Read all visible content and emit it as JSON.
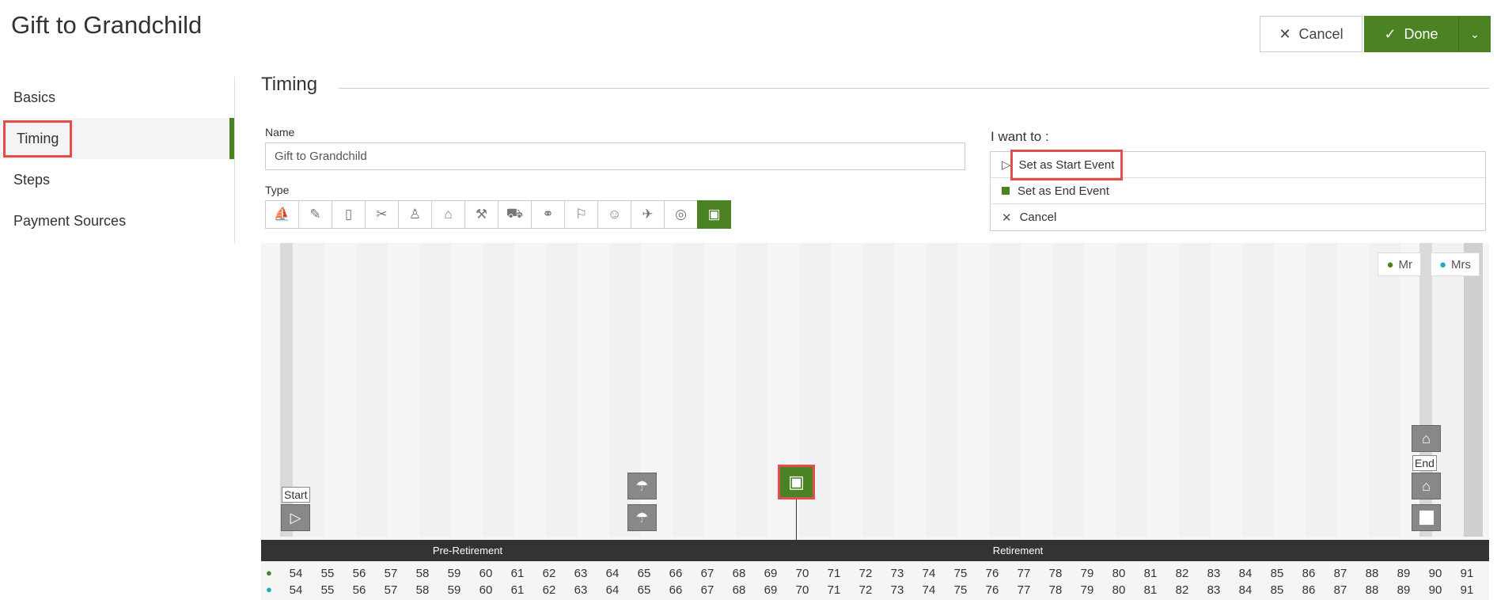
{
  "header": {
    "title": "Gift to Grandchild",
    "cancel_label": "Cancel",
    "done_label": "Done"
  },
  "sidebar": {
    "items": [
      {
        "label": "Basics"
      },
      {
        "label": "Timing"
      },
      {
        "label": "Steps"
      },
      {
        "label": "Payment Sources"
      }
    ],
    "active": "Timing"
  },
  "section": {
    "title": "Timing"
  },
  "form": {
    "name_label": "Name",
    "name_value": "Gift to Grandchild",
    "type_label": "Type",
    "types": [
      "boat-icon",
      "graduation-icon",
      "book-icon",
      "wedding-icon",
      "car-seat-icon",
      "house-icon",
      "home-improvement-icon",
      "car-icon",
      "family-icon",
      "paint-roller-icon",
      "person-icon",
      "plane-icon",
      "rings-icon",
      "calendar-gift-icon"
    ],
    "selected_type": "calendar-gift-icon"
  },
  "actions": {
    "title": "I want to :",
    "items": [
      {
        "label": "Set as Start Event",
        "icon": "play-icon"
      },
      {
        "label": "Set as End Event",
        "icon": "stop-icon"
      },
      {
        "label": "Cancel",
        "icon": "close-icon"
      }
    ]
  },
  "timeline": {
    "people": [
      {
        "label": "Mr",
        "color": "#4b8224"
      },
      {
        "label": "Mrs",
        "color": "#1fa9bf"
      }
    ],
    "start_label": "Start",
    "end_label": "End",
    "phases": [
      {
        "label": "Pre-Retirement",
        "color": "#6b4c91"
      },
      {
        "label": "Retirement",
        "color": "#1fb0c6"
      }
    ],
    "ages_mr": [
      "54",
      "55",
      "56",
      "57",
      "58",
      "59",
      "60",
      "61",
      "62",
      "63",
      "64",
      "65",
      "66",
      "67",
      "68",
      "69",
      "70",
      "71",
      "72",
      "73",
      "74",
      "75",
      "76",
      "77",
      "78",
      "79",
      "80",
      "81",
      "82",
      "83",
      "84",
      "85",
      "86",
      "87",
      "88",
      "89",
      "90",
      "91"
    ],
    "ages_mrs": [
      "54",
      "55",
      "56",
      "57",
      "58",
      "59",
      "60",
      "61",
      "62",
      "63",
      "64",
      "65",
      "66",
      "67",
      "68",
      "69",
      "70",
      "71",
      "72",
      "73",
      "74",
      "75",
      "76",
      "77",
      "78",
      "79",
      "80",
      "81",
      "82",
      "83",
      "84",
      "85",
      "86",
      "87",
      "88",
      "89",
      "90",
      "91"
    ]
  }
}
